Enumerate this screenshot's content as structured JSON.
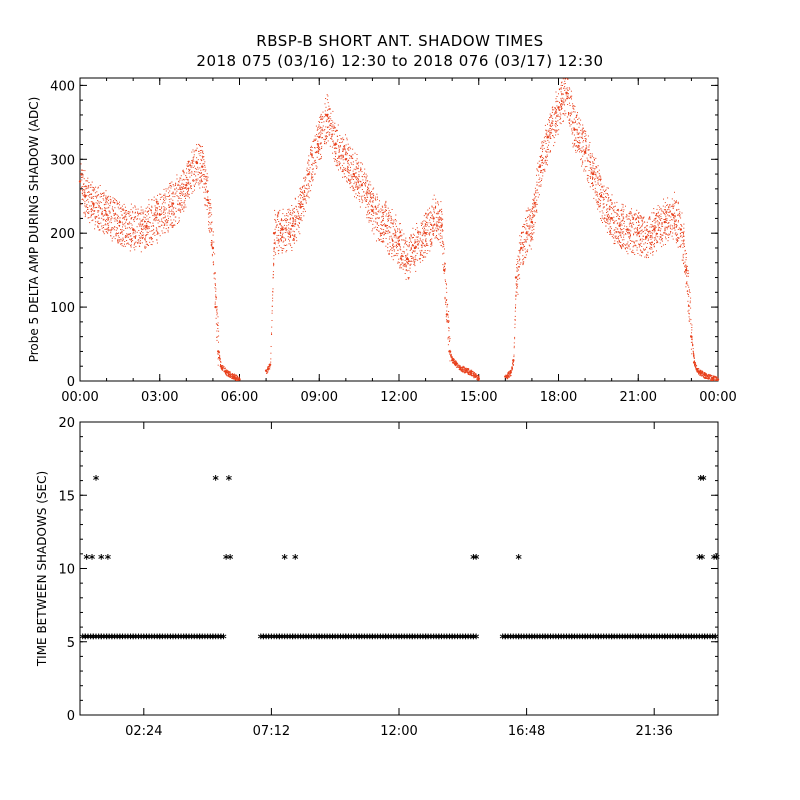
{
  "header": {
    "title_line1": "RBSP-B SHORT ANT. SHADOW TIMES",
    "title_line2": "2018 075 (03/16) 12:30 to 2018 076 (03/17) 12:30"
  },
  "colors": {
    "amp_points": "#e8401c",
    "shadow_points": "#000000",
    "axes": "#000000",
    "background": "#ffffff"
  },
  "chart_data": [
    {
      "type": "scatter",
      "title": "",
      "xlabel": "",
      "ylabel": "Probe 5 DELTA AMP DURING SHADOW (ADC)",
      "xlim": [
        0,
        24
      ],
      "ylim": [
        0,
        410
      ],
      "x_ticks": [
        0,
        3,
        6,
        9,
        12,
        15,
        18,
        21,
        24
      ],
      "x_tick_labels": [
        "00:00",
        "03:00",
        "06:00",
        "09:00",
        "12:00",
        "15:00",
        "18:00",
        "21:00",
        "00:00"
      ],
      "y_ticks": [
        0,
        100,
        200,
        300,
        400
      ],
      "y_tick_labels": [
        "0",
        "100",
        "200",
        "300",
        "400"
      ],
      "grid": false,
      "legend": "none",
      "series": [
        {
          "color": "#e8401c",
          "marker": "dot",
          "spread": 35,
          "x": [
            0.0,
            0.2,
            0.5,
            1.0,
            1.5,
            2.0,
            2.5,
            3.0,
            3.5,
            4.0,
            4.4,
            4.6,
            4.8,
            5.0,
            5.1,
            5.2,
            5.3,
            5.5,
            5.8,
            6.0,
            7.0,
            7.15,
            7.3,
            7.6,
            8.0,
            8.3,
            8.6,
            9.0,
            9.3,
            9.6,
            10.0,
            10.3,
            10.6,
            11.0,
            11.5,
            12.0,
            12.3,
            12.6,
            13.0,
            13.3,
            13.6,
            13.7,
            13.8,
            13.9,
            14.0,
            14.3,
            14.7,
            15.0,
            16.0,
            16.2,
            16.3,
            16.4,
            16.6,
            16.8,
            17.0,
            17.3,
            17.6,
            18.0,
            18.3,
            18.6,
            19.0,
            19.3,
            19.6,
            20.0,
            20.3,
            20.6,
            21.0,
            21.3,
            21.6,
            22.0,
            22.3,
            22.6,
            22.8,
            23.0,
            23.1,
            23.2,
            23.3,
            23.5,
            23.8,
            24.0
          ],
          "y": [
            270,
            250,
            240,
            225,
            215,
            205,
            210,
            225,
            240,
            265,
            295,
            290,
            245,
            180,
            100,
            40,
            20,
            12,
            6,
            2,
            14,
            22,
            200,
            205,
            210,
            235,
            280,
            330,
            360,
            320,
            300,
            280,
            265,
            230,
            210,
            185,
            165,
            180,
            200,
            220,
            210,
            150,
            90,
            40,
            28,
            18,
            12,
            3,
            6,
            12,
            28,
            140,
            180,
            200,
            215,
            290,
            330,
            370,
            390,
            340,
            310,
            280,
            250,
            220,
            210,
            205,
            200,
            195,
            205,
            215,
            225,
            205,
            150,
            60,
            25,
            16,
            12,
            8,
            4,
            2
          ]
        }
      ]
    },
    {
      "type": "scatter",
      "title": "",
      "xlabel": "",
      "ylabel": "TIME BETWEEN SHADOWS (SEC)",
      "xlim": [
        0,
        24
      ],
      "ylim": [
        0,
        20
      ],
      "x_ticks": [
        2.4,
        7.2,
        12.0,
        16.8,
        21.6
      ],
      "x_tick_labels": [
        "02:24",
        "07:12",
        "12:00",
        "16:48",
        "21:36"
      ],
      "y_ticks": [
        0,
        5,
        10,
        15,
        20
      ],
      "y_tick_labels": [
        "0",
        "5",
        "10",
        "15",
        "20"
      ],
      "grid": false,
      "legend": "none",
      "series": [
        {
          "color": "#000000",
          "marker": "asterisk",
          "x": [
            0.2,
            0.5,
            0.8,
            1.0,
            1.2,
            1.5,
            2.0,
            2.5,
            3.0,
            3.5,
            4.0,
            4.5,
            5.0,
            5.3,
            6.9,
            7.5,
            8.0,
            8.5,
            9.0,
            9.5,
            10.0,
            10.5,
            11.0,
            11.5,
            12.0,
            12.5,
            13.0,
            13.5,
            14.0,
            14.5,
            14.8,
            16.0,
            16.5,
            17.0,
            17.5,
            18.0,
            18.5,
            19.0,
            19.5,
            20.0,
            20.5,
            21.0,
            21.5,
            22.0,
            22.5,
            23.0,
            23.5,
            23.9,
            0.25,
            0.45,
            0.8,
            1.05,
            5.5,
            5.65,
            7.7,
            8.1,
            14.8,
            14.9,
            16.5,
            23.3,
            23.4,
            23.85,
            23.95,
            0.6,
            5.1,
            5.6,
            23.35,
            23.45
          ],
          "y": [
            5.3,
            5.3,
            5.3,
            5.3,
            5.3,
            5.3,
            5.3,
            5.3,
            5.3,
            5.3,
            5.3,
            5.3,
            5.3,
            5.3,
            5.3,
            5.3,
            5.3,
            5.3,
            5.3,
            5.3,
            5.3,
            5.3,
            5.3,
            5.3,
            5.3,
            5.3,
            5.3,
            5.3,
            5.3,
            5.3,
            5.3,
            5.3,
            5.3,
            5.3,
            5.3,
            5.3,
            5.3,
            5.3,
            5.3,
            5.3,
            5.3,
            5.3,
            5.3,
            5.3,
            5.3,
            5.3,
            5.3,
            5.3,
            10.7,
            10.7,
            10.7,
            10.7,
            10.7,
            10.7,
            10.7,
            10.7,
            10.7,
            10.7,
            10.7,
            10.7,
            10.7,
            10.7,
            10.7,
            16.1,
            16.1,
            16.1,
            16.1,
            16.1
          ]
        }
      ]
    }
  ]
}
